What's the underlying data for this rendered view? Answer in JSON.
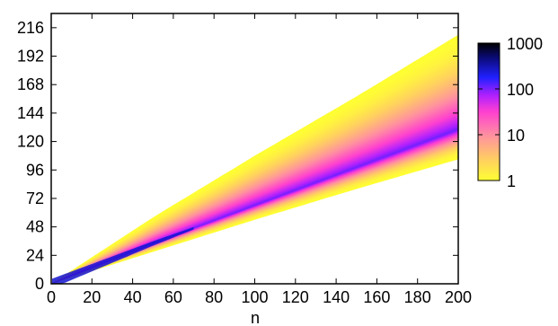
{
  "chart_data": {
    "type": "heatmap",
    "title": "",
    "xlabel": "n",
    "ylabel": "",
    "xlim": [
      0,
      200
    ],
    "ylim": [
      0,
      228
    ],
    "x_ticks": [
      0,
      20,
      40,
      60,
      80,
      100,
      120,
      140,
      160,
      180,
      200
    ],
    "y_ticks": [
      0,
      24,
      48,
      72,
      96,
      120,
      144,
      168,
      192,
      216
    ],
    "x_tick_labels": [
      "0",
      "20",
      "40",
      "60",
      "80",
      "100",
      "120",
      "140",
      "160",
      "180",
      "200"
    ],
    "y_tick_labels": [
      "0",
      "24",
      "48",
      "72",
      "96",
      "120",
      "144",
      "168",
      "192",
      "216"
    ],
    "grid": false,
    "colorbar": {
      "scale": "log",
      "range": [
        1,
        1000
      ],
      "ticks": [
        1,
        10,
        100,
        1000
      ],
      "tick_labels": [
        "1",
        "10",
        "100",
        "1000"
      ],
      "colors": [
        "#ffff33",
        "#ffcc66",
        "#ff8fa0",
        "#ff44cc",
        "#cc22ff",
        "#6622ff",
        "#1a1aff",
        "#0a0a66",
        "#000000"
      ],
      "placement": "right"
    },
    "density": {
      "x": [
        0,
        50,
        100,
        150,
        200
      ],
      "upper_edge_y": [
        0,
        56,
        108,
        158,
        210
      ],
      "lower_edge_y": [
        0,
        27,
        54,
        80,
        105
      ],
      "peak_y": [
        0,
        34,
        66,
        98,
        130
      ],
      "peak_count": [
        1000,
        400,
        120,
        60,
        40
      ],
      "edge_count": [
        1,
        1,
        1,
        1,
        1
      ]
    }
  }
}
